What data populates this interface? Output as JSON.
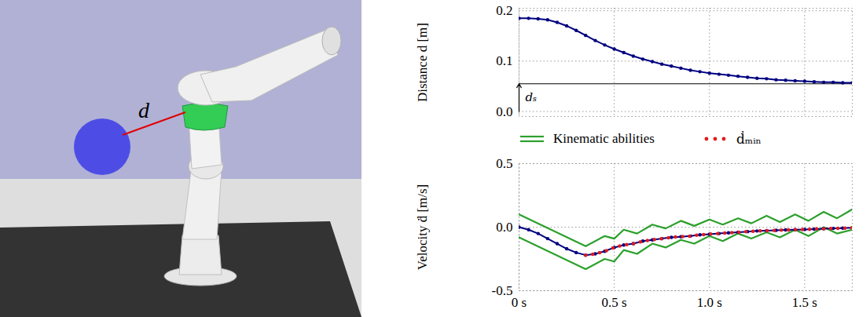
{
  "scene": {
    "label": "d"
  },
  "chart_data": [
    {
      "type": "line",
      "ylabel": "Distance d [m]",
      "x": [
        0,
        0.05,
        0.1,
        0.15,
        0.2,
        0.25,
        0.3,
        0.35,
        0.4,
        0.45,
        0.5,
        0.55,
        0.6,
        0.65,
        0.7,
        0.75,
        0.8,
        0.85,
        0.9,
        0.95,
        1.0,
        1.05,
        1.1,
        1.15,
        1.2,
        1.25,
        1.3,
        1.35,
        1.4,
        1.45,
        1.5,
        1.55,
        1.6,
        1.65,
        1.7,
        1.75
      ],
      "series": [
        {
          "color": "#000080",
          "marker": "circle",
          "values": [
            0.185,
            0.185,
            0.184,
            0.182,
            0.177,
            0.17,
            0.161,
            0.151,
            0.141,
            0.132,
            0.124,
            0.117,
            0.11,
            0.104,
            0.099,
            0.094,
            0.09,
            0.086,
            0.082,
            0.079,
            0.076,
            0.074,
            0.072,
            0.07,
            0.068,
            0.066,
            0.065,
            0.063,
            0.062,
            0.061,
            0.06,
            0.059,
            0.058,
            0.058,
            0.057,
            0.057
          ]
        }
      ],
      "annotations": [
        {
          "text": "dₛ",
          "value": 0.055
        }
      ],
      "xlim": [
        0,
        1.75
      ],
      "xticks": [
        0,
        0.5,
        1.0,
        1.5
      ],
      "ylim": [
        -0.01,
        0.205
      ],
      "yticks": [
        {
          "value": 0,
          "label": "0.0"
        },
        {
          "value": 0.1,
          "label": "0.1"
        },
        {
          "value": 0.2,
          "label": "0.2"
        }
      ],
      "grid": true,
      "tick_labels": "y"
    },
    {
      "type": "line",
      "ylabel": "Velocity ḋ [m/s]",
      "x": [
        0,
        0.05,
        0.1,
        0.15,
        0.2,
        0.25,
        0.3,
        0.35,
        0.4,
        0.45,
        0.5,
        0.55,
        0.6,
        0.65,
        0.7,
        0.75,
        0.8,
        0.85,
        0.9,
        0.95,
        1.0,
        1.05,
        1.1,
        1.15,
        1.2,
        1.25,
        1.3,
        1.35,
        1.4,
        1.45,
        1.5,
        1.55,
        1.6,
        1.65,
        1.7,
        1.75
      ],
      "series": [
        {
          "name": "Kinematic abilities",
          "color": "#2ca02c",
          "x": [
            0,
            0.35,
            0.45,
            0.5,
            0.55,
            0.62,
            0.7,
            0.77,
            0.85,
            0.92,
            1.0,
            1.07,
            1.15,
            1.22,
            1.3,
            1.37,
            1.45,
            1.52,
            1.6,
            1.67,
            1.75
          ],
          "upper": [
            0.1,
            -0.15,
            -0.07,
            -0.09,
            -0.02,
            -0.05,
            0.02,
            -0.01,
            0.05,
            0.01,
            0.06,
            0.02,
            0.07,
            0.03,
            0.09,
            0.04,
            0.1,
            0.05,
            0.12,
            0.07,
            0.14
          ],
          "lower": [
            -0.08,
            -0.33,
            -0.25,
            -0.27,
            -0.18,
            -0.21,
            -0.13,
            -0.16,
            -0.1,
            -0.13,
            -0.07,
            -0.11,
            -0.05,
            -0.09,
            -0.04,
            -0.08,
            -0.02,
            -0.07,
            0.0,
            -0.05,
            -0.02
          ]
        },
        {
          "color": "#000080",
          "marker": "circle",
          "values": [
            0.0,
            -0.02,
            -0.05,
            -0.09,
            -0.13,
            -0.17,
            -0.2,
            -0.22,
            -0.21,
            -0.19,
            -0.16,
            -0.14,
            -0.13,
            -0.11,
            -0.1,
            -0.09,
            -0.08,
            -0.075,
            -0.07,
            -0.06,
            -0.055,
            -0.05,
            -0.045,
            -0.04,
            -0.035,
            -0.03,
            -0.028,
            -0.025,
            -0.022,
            -0.02,
            -0.018,
            -0.015,
            -0.012,
            -0.01,
            -0.008,
            -0.005
          ]
        },
        {
          "name": "ḋₘᵢₙ",
          "color": "#e41a1c",
          "line_style": "dotted",
          "values": [
            null,
            null,
            null,
            null,
            null,
            null,
            null,
            -0.22,
            -0.21,
            -0.19,
            -0.16,
            -0.14,
            -0.13,
            -0.11,
            -0.1,
            -0.09,
            -0.08,
            -0.075,
            -0.07,
            -0.06,
            -0.055,
            -0.05,
            -0.045,
            -0.04,
            -0.035,
            -0.03,
            -0.028,
            -0.025,
            -0.022,
            -0.02,
            -0.018,
            -0.015,
            -0.012,
            -0.01,
            -0.008,
            -0.005
          ]
        }
      ],
      "xlim": [
        0,
        1.75
      ],
      "xticks": [
        {
          "value": 0,
          "label": "0 s"
        },
        {
          "value": 0.5,
          "label": "0.5 s"
        },
        {
          "value": 1.0,
          "label": "1.0 s"
        },
        {
          "value": 1.5,
          "label": "1.5 s"
        }
      ],
      "ylim": [
        -0.5,
        0.5
      ],
      "yticks": [
        -0.5,
        {
          "value": 0,
          "label": "0.0"
        },
        0.5
      ],
      "grid": true,
      "legend": "top"
    }
  ]
}
